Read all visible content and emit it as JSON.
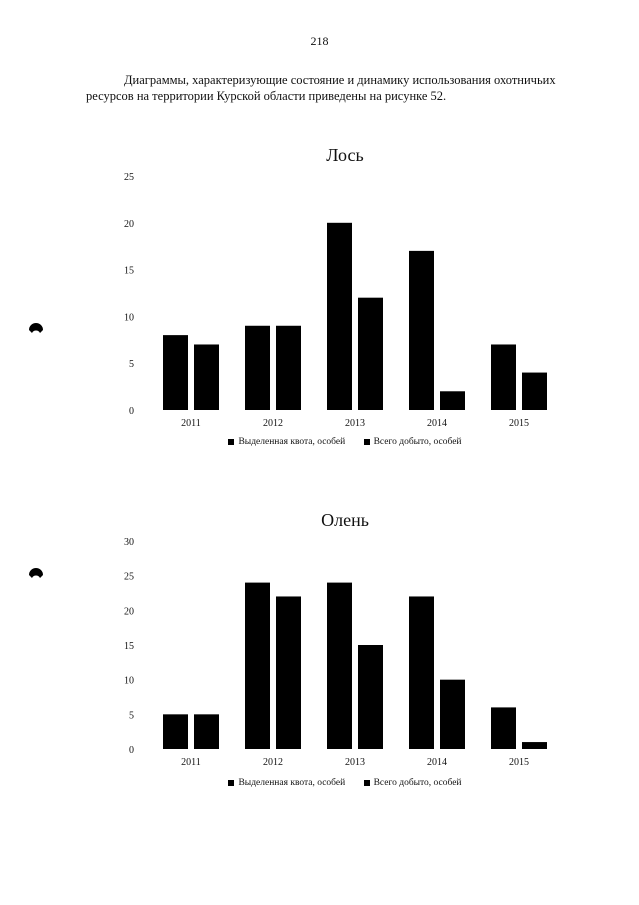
{
  "page": {
    "number": "218",
    "intro": "Диаграммы, характеризующие состояние и динамику использования охотничьих ресурсов на территории Курской области приведены на рисунке 52."
  },
  "chart_data": [
    {
      "type": "bar",
      "title": "Лось",
      "categories": [
        "2011",
        "2012",
        "2013",
        "2014",
        "2015"
      ],
      "series": [
        {
          "name": "Выделенная квота, особей",
          "values": [
            8,
            9,
            20,
            17,
            7
          ],
          "color": "#000000"
        },
        {
          "name": "Всего добыто, особей",
          "values": [
            7,
            9,
            12,
            2,
            4
          ],
          "color": "#000000"
        }
      ],
      "ylim": [
        0,
        25
      ],
      "yticks": [
        "0",
        "5",
        "10",
        "15",
        "20",
        "25"
      ],
      "legend_position": "bottom",
      "grid": false
    },
    {
      "type": "bar",
      "title": "Олень",
      "categories": [
        "2011",
        "2012",
        "2013",
        "2014",
        "2015"
      ],
      "series": [
        {
          "name": "Выделенная квота, особей",
          "values": [
            5,
            24,
            24,
            22,
            6
          ],
          "color": "#000000"
        },
        {
          "name": "Всего добыто, особей",
          "values": [
            5,
            22,
            15,
            10,
            1
          ],
          "color": "#000000"
        }
      ],
      "ylim": [
        0,
        30
      ],
      "yticks": [
        "0",
        "5",
        "10",
        "15",
        "20",
        "25",
        "30"
      ],
      "legend_position": "bottom",
      "grid": false
    }
  ]
}
